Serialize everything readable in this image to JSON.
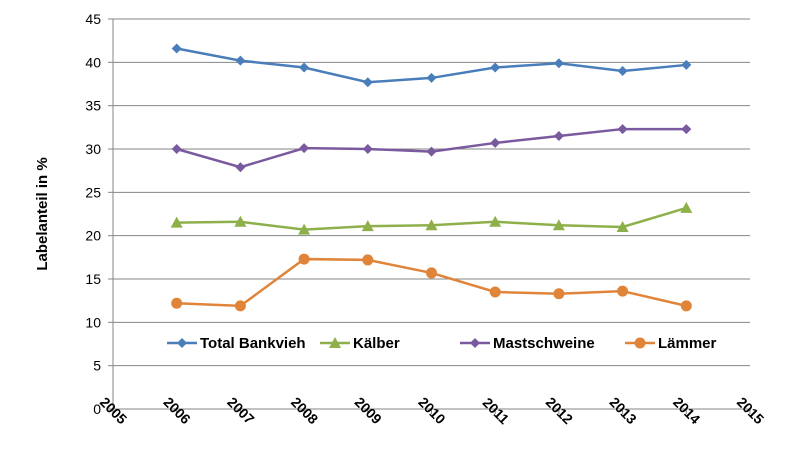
{
  "chart_data": {
    "type": "line",
    "title": "",
    "xlabel": "",
    "ylabel": "Labelanteil in %",
    "xlim": [
      2005,
      2015
    ],
    "ylim": [
      0,
      45
    ],
    "yticks": [
      0,
      5,
      10,
      15,
      20,
      25,
      30,
      35,
      40,
      45
    ],
    "xticks": [
      2005,
      2006,
      2007,
      2008,
      2009,
      2010,
      2011,
      2012,
      2013,
      2014,
      2015
    ],
    "grid": "horizontal",
    "legend_placement": "bottom-inside",
    "x": [
      2006,
      2007,
      2008,
      2009,
      2010,
      2011,
      2012,
      2013,
      2014
    ],
    "series": [
      {
        "name": "Total Bankvieh",
        "color": "#4a7ebb",
        "marker": "diamond",
        "values": [
          41.6,
          40.2,
          39.4,
          37.7,
          38.2,
          39.4,
          39.9,
          39.0,
          39.7
        ]
      },
      {
        "name": "Kälber",
        "color": "#8db04a",
        "marker": "triangle",
        "values": [
          21.5,
          21.6,
          20.7,
          21.1,
          21.2,
          21.6,
          21.2,
          21.0,
          23.2
        ]
      },
      {
        "name": "Mastschweine",
        "color": "#7a5a9e",
        "marker": "diamond",
        "values": [
          30.0,
          27.9,
          30.1,
          30.0,
          29.7,
          30.7,
          31.5,
          32.3,
          32.3
        ]
      },
      {
        "name": "Lämmer",
        "color": "#e0843a",
        "marker": "circle",
        "values": [
          12.2,
          11.9,
          17.3,
          17.2,
          15.7,
          13.5,
          13.3,
          13.6,
          11.9
        ]
      }
    ]
  }
}
